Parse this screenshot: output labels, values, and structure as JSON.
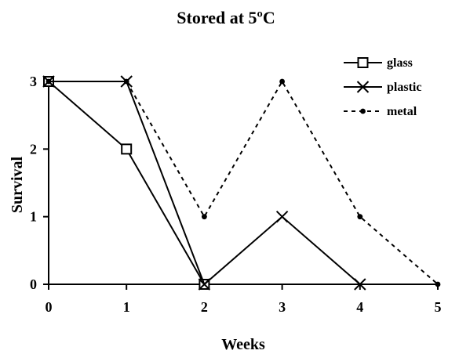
{
  "chart_data": {
    "type": "line",
    "title": "Stored at 5ºC",
    "xlabel": "Weeks",
    "ylabel": "Survival",
    "x": [
      0,
      1,
      2,
      3,
      4,
      5
    ],
    "xlim": [
      0,
      5
    ],
    "ylim": [
      0,
      3
    ],
    "x_ticks": [
      "0",
      "1",
      "2",
      "3",
      "4",
      "5"
    ],
    "y_ticks": [
      "0",
      "1",
      "2",
      "3"
    ],
    "grid": false,
    "legend_position": "top-right",
    "series": [
      {
        "name": "glass",
        "x": [
          0,
          1,
          2
        ],
        "values": [
          3,
          2,
          0
        ],
        "marker": "square",
        "line_style": "solid",
        "color": "#000000"
      },
      {
        "name": "plastic",
        "x": [
          0,
          1,
          2,
          3,
          4
        ],
        "values": [
          3,
          3,
          0,
          1,
          0
        ],
        "marker": "x",
        "line_style": "solid",
        "color": "#000000"
      },
      {
        "name": "metal",
        "x": [
          0,
          1,
          2,
          3,
          4,
          5
        ],
        "values": [
          3,
          3,
          1,
          3,
          1,
          0
        ],
        "marker": "dot",
        "line_style": "dashed",
        "color": "#000000"
      }
    ]
  }
}
